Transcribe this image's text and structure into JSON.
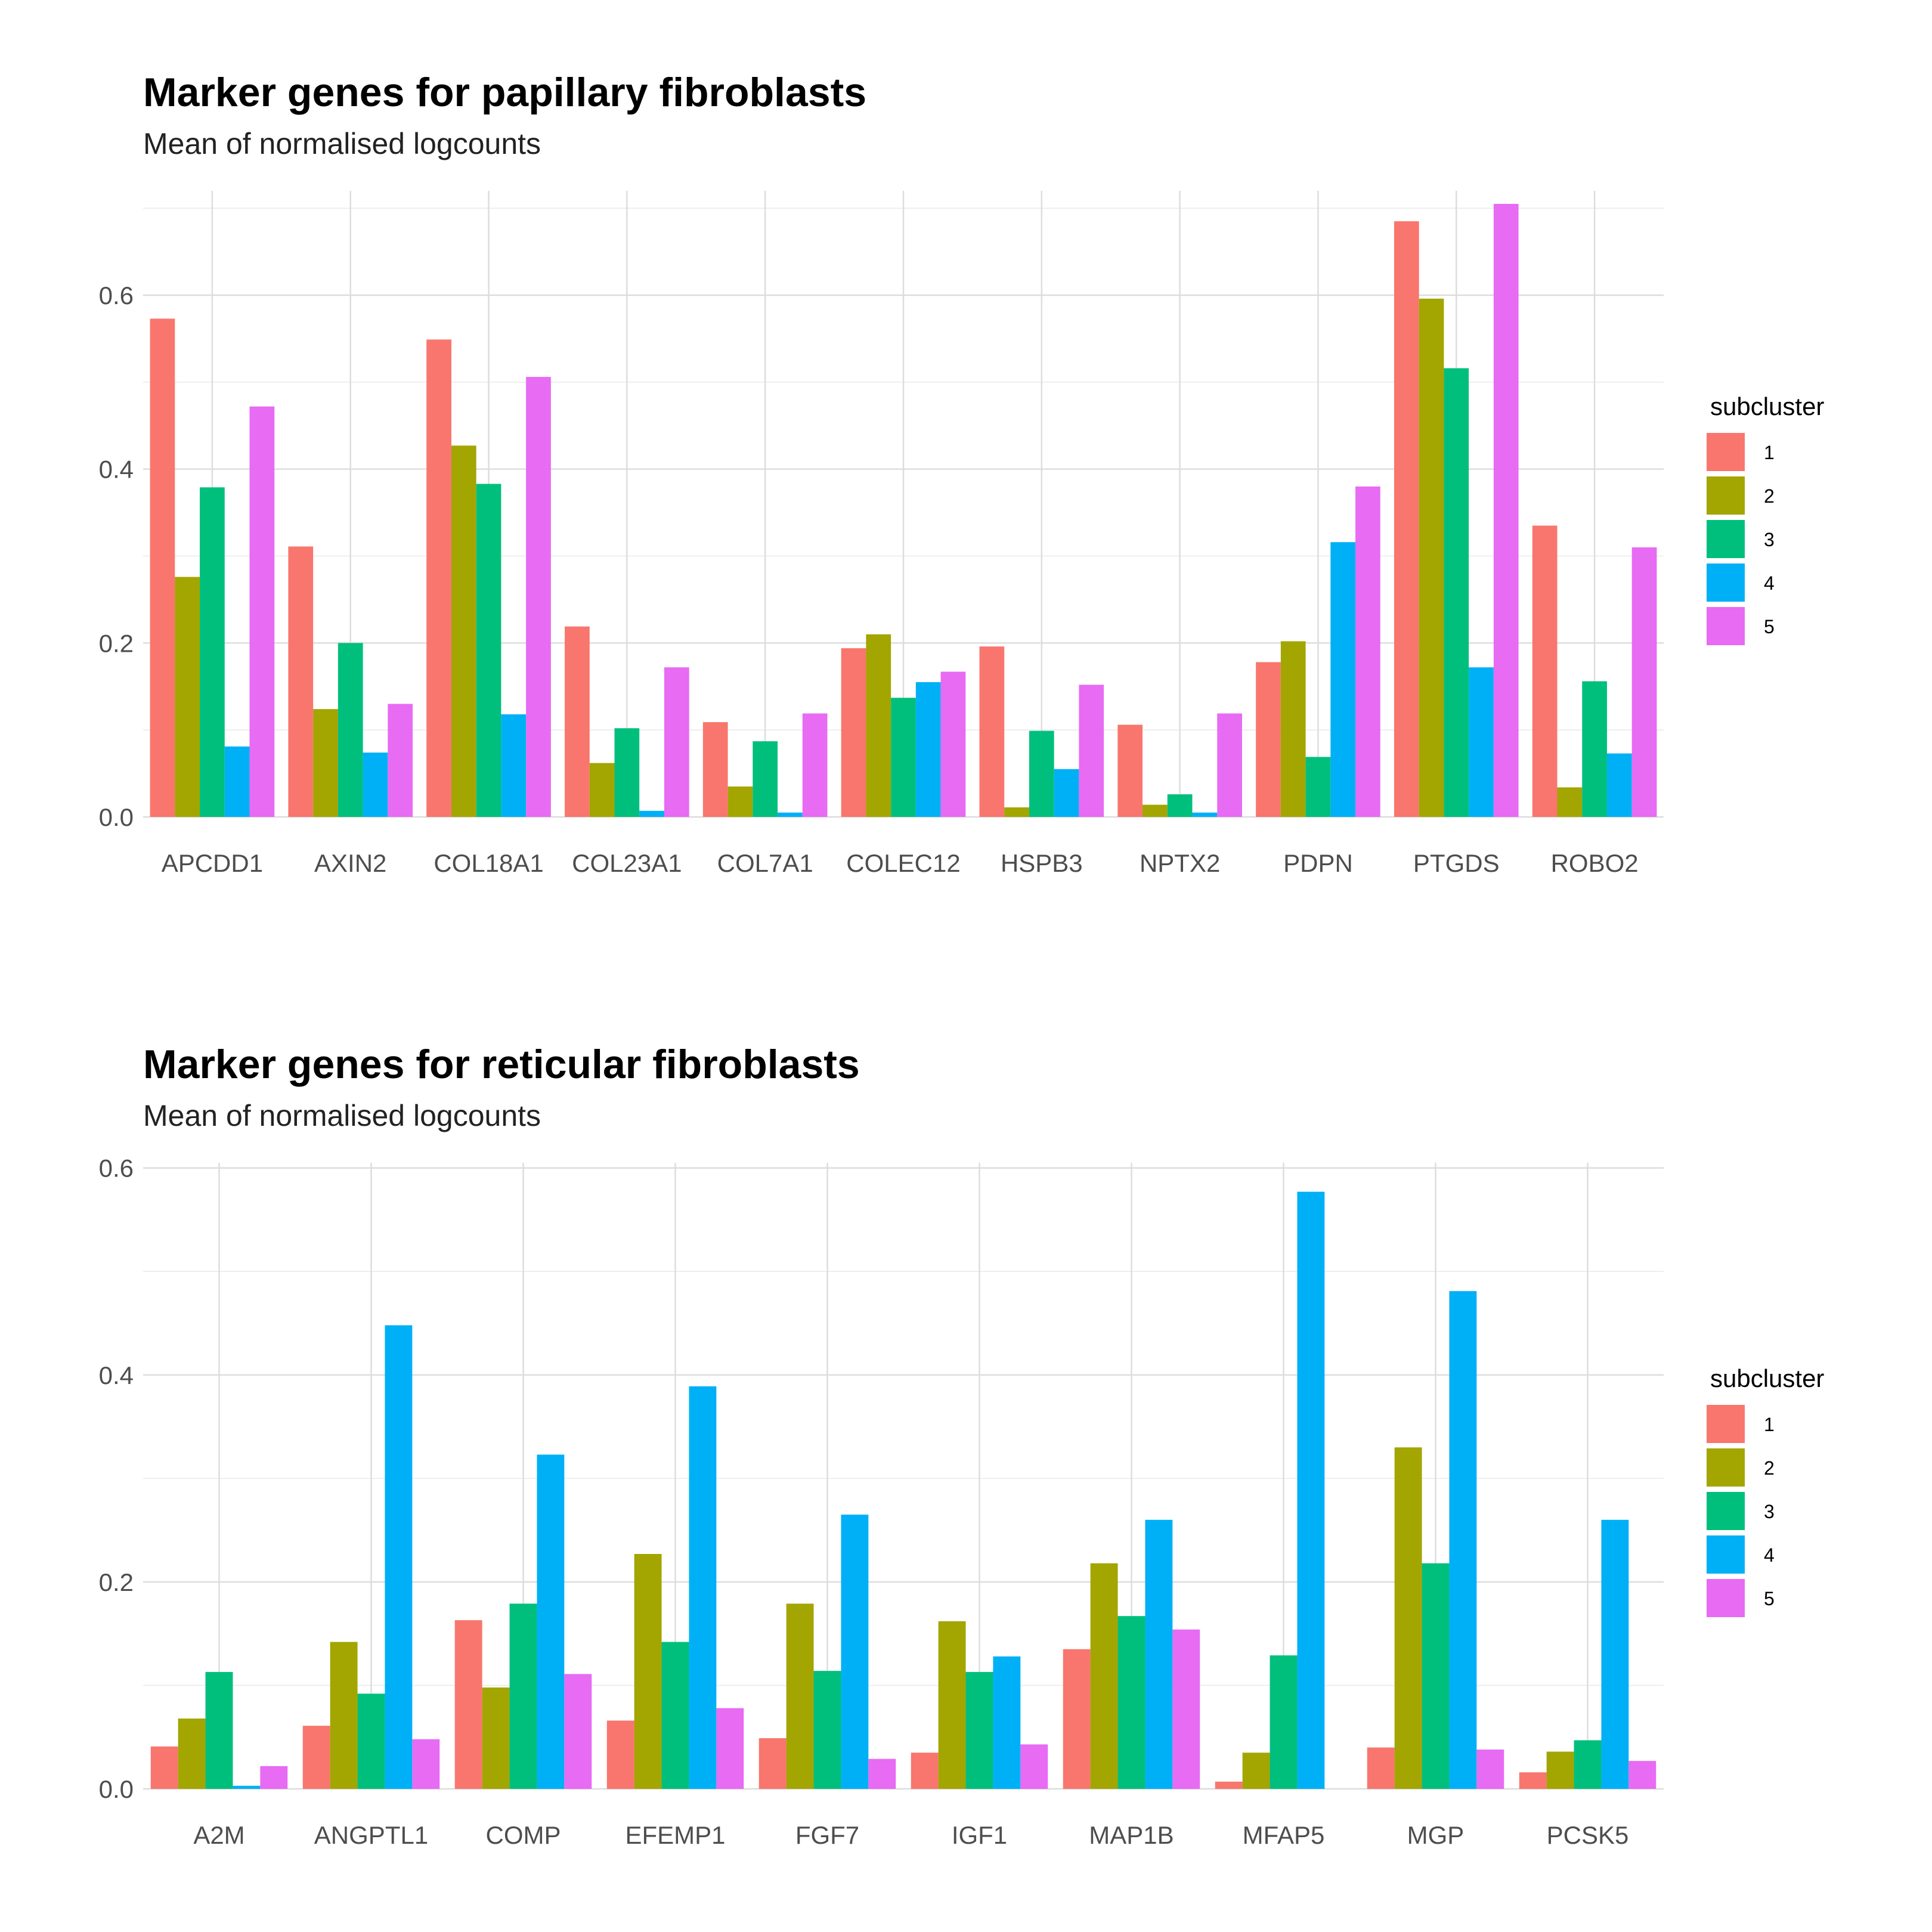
{
  "chart_data": [
    {
      "type": "bar",
      "title": "Marker genes for papillary fibroblasts",
      "subtitle": "Mean of normalised logcounts",
      "xlabel": "",
      "ylabel": "",
      "ylim": [
        0,
        0.72
      ],
      "yticks": [
        0.0,
        0.2,
        0.4,
        0.6
      ],
      "ytick_labels": [
        "0.0",
        "0.2",
        "0.4",
        "0.6"
      ],
      "legend": {
        "title": "subcluster",
        "position": "right"
      },
      "categories": [
        "APCDD1",
        "AXIN2",
        "COL18A1",
        "COL23A1",
        "COL7A1",
        "COLEC12",
        "HSPB3",
        "NPTX2",
        "PDPN",
        "PTGDS",
        "ROBO2"
      ],
      "series": [
        {
          "name": "1",
          "color": "#F8766D",
          "values": [
            0.573,
            0.311,
            0.549,
            0.219,
            0.109,
            0.194,
            0.196,
            0.106,
            0.178,
            0.685,
            0.335
          ]
        },
        {
          "name": "2",
          "color": "#A3A500",
          "values": [
            0.276,
            0.124,
            0.427,
            0.062,
            0.035,
            0.21,
            0.011,
            0.014,
            0.202,
            0.596,
            0.034
          ]
        },
        {
          "name": "3",
          "color": "#00BF7D",
          "values": [
            0.379,
            0.2,
            0.383,
            0.102,
            0.087,
            0.137,
            0.099,
            0.026,
            0.069,
            0.516,
            0.156
          ]
        },
        {
          "name": "4",
          "color": "#00B0F6",
          "values": [
            0.081,
            0.074,
            0.118,
            0.007,
            0.005,
            0.155,
            0.055,
            0.005,
            0.316,
            0.172,
            0.073
          ]
        },
        {
          "name": "5",
          "color": "#E76BF3",
          "values": [
            0.472,
            0.13,
            0.506,
            0.172,
            0.119,
            0.167,
            0.152,
            0.119,
            0.38,
            0.705,
            0.31
          ]
        }
      ]
    },
    {
      "type": "bar",
      "title": "Marker genes for reticular fibroblasts",
      "subtitle": "Mean of normalised logcounts",
      "xlabel": "",
      "ylabel": "",
      "ylim": [
        0,
        0.605
      ],
      "yticks": [
        0.0,
        0.2,
        0.4,
        0.6
      ],
      "ytick_labels": [
        "0.0",
        "0.2",
        "0.4",
        "0.6"
      ],
      "legend": {
        "title": "subcluster",
        "position": "right"
      },
      "categories": [
        "A2M",
        "ANGPTL1",
        "COMP",
        "EFEMP1",
        "FGF7",
        "IGF1",
        "MAP1B",
        "MFAP5",
        "MGP",
        "PCSK5"
      ],
      "series": [
        {
          "name": "1",
          "color": "#F8766D",
          "values": [
            0.041,
            0.061,
            0.163,
            0.066,
            0.049,
            0.035,
            0.135,
            0.007,
            0.04,
            0.016
          ]
        },
        {
          "name": "2",
          "color": "#A3A500",
          "values": [
            0.068,
            0.142,
            0.098,
            0.227,
            0.179,
            0.162,
            0.218,
            0.035,
            0.33,
            0.036
          ]
        },
        {
          "name": "3",
          "color": "#00BF7D",
          "values": [
            0.113,
            0.092,
            0.179,
            0.142,
            0.114,
            0.113,
            0.167,
            0.129,
            0.218,
            0.047
          ]
        },
        {
          "name": "4",
          "color": "#00B0F6",
          "values": [
            0.003,
            0.448,
            0.323,
            0.389,
            0.265,
            0.128,
            0.26,
            0.577,
            0.481,
            0.26
          ]
        },
        {
          "name": "5",
          "color": "#E76BF3",
          "values": [
            0.022,
            0.048,
            0.111,
            0.078,
            0.029,
            0.043,
            0.154,
            null,
            0.038,
            0.027
          ]
        }
      ]
    }
  ]
}
